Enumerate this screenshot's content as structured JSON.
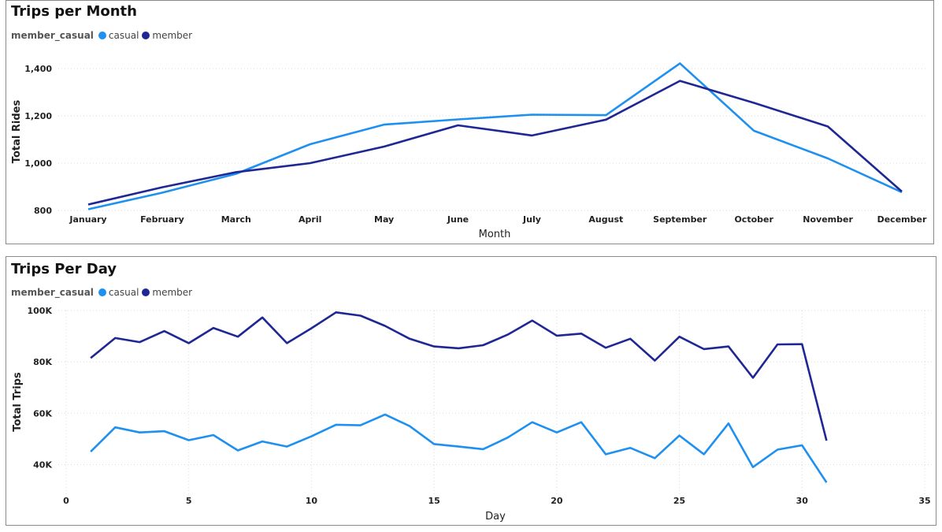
{
  "chart_data": [
    {
      "type": "line",
      "title": "Trips per Month",
      "legend_title": "member_casual",
      "legend_placement": "top-left",
      "xlabel": "Month",
      "ylabel": "Total Rides",
      "categories": [
        "January",
        "February",
        "March",
        "April",
        "May",
        "June",
        "July",
        "August",
        "September",
        "October",
        "November",
        "December"
      ],
      "ylim": [
        800,
        1480
      ],
      "yticks": [
        800,
        1000,
        1200,
        1400
      ],
      "ytick_labels": [
        "800",
        "1,000",
        "1,200",
        "1,400"
      ],
      "grid": true,
      "series": [
        {
          "name": "casual",
          "color": "#1E90F0",
          "values": [
            805,
            875,
            955,
            1080,
            1163,
            1185,
            1205,
            1203,
            1422,
            1137,
            1020,
            877
          ]
        },
        {
          "name": "member",
          "color": "#1F2794",
          "values": [
            825,
            898,
            962,
            1000,
            1070,
            1160,
            1117,
            1184,
            1348,
            1255,
            1155,
            880
          ]
        }
      ]
    },
    {
      "type": "line",
      "title": "Trips Per Day",
      "legend_title": "member_casual",
      "legend_placement": "top-left",
      "xlabel": "Day",
      "ylabel": "Total Trips",
      "xlim": [
        0,
        35
      ],
      "xticks": [
        0,
        5,
        10,
        15,
        20,
        25,
        30,
        35
      ],
      "ylim": [
        30000,
        100000
      ],
      "yticks": [
        40000,
        60000,
        80000,
        100000
      ],
      "ytick_labels": [
        "40K",
        "60K",
        "80K",
        "100K"
      ],
      "grid": true,
      "x": [
        1,
        2,
        3,
        4,
        5,
        6,
        7,
        8,
        9,
        10,
        11,
        12,
        13,
        14,
        15,
        16,
        17,
        18,
        19,
        20,
        21,
        22,
        23,
        24,
        25,
        26,
        27,
        28,
        29,
        30,
        31
      ],
      "series": [
        {
          "name": "casual",
          "color": "#1E90F0",
          "values": [
            45000,
            54500,
            52500,
            53000,
            49500,
            51500,
            45500,
            49000,
            47000,
            51000,
            55500,
            55300,
            59500,
            55000,
            48000,
            47000,
            46000,
            50500,
            56500,
            52500,
            56500,
            44000,
            46500,
            42500,
            51300,
            44000,
            56000,
            39000,
            45800,
            47500,
            33000
          ]
        },
        {
          "name": "member",
          "color": "#1F2794",
          "values": [
            81500,
            89300,
            87700,
            92000,
            87300,
            93200,
            89800,
            97300,
            87300,
            93100,
            99300,
            98000,
            94000,
            89000,
            86000,
            85300,
            86500,
            90600,
            96100,
            90200,
            91000,
            85500,
            89000,
            80500,
            89800,
            85000,
            86000,
            73800,
            86800,
            86900,
            49300
          ]
        }
      ]
    }
  ]
}
